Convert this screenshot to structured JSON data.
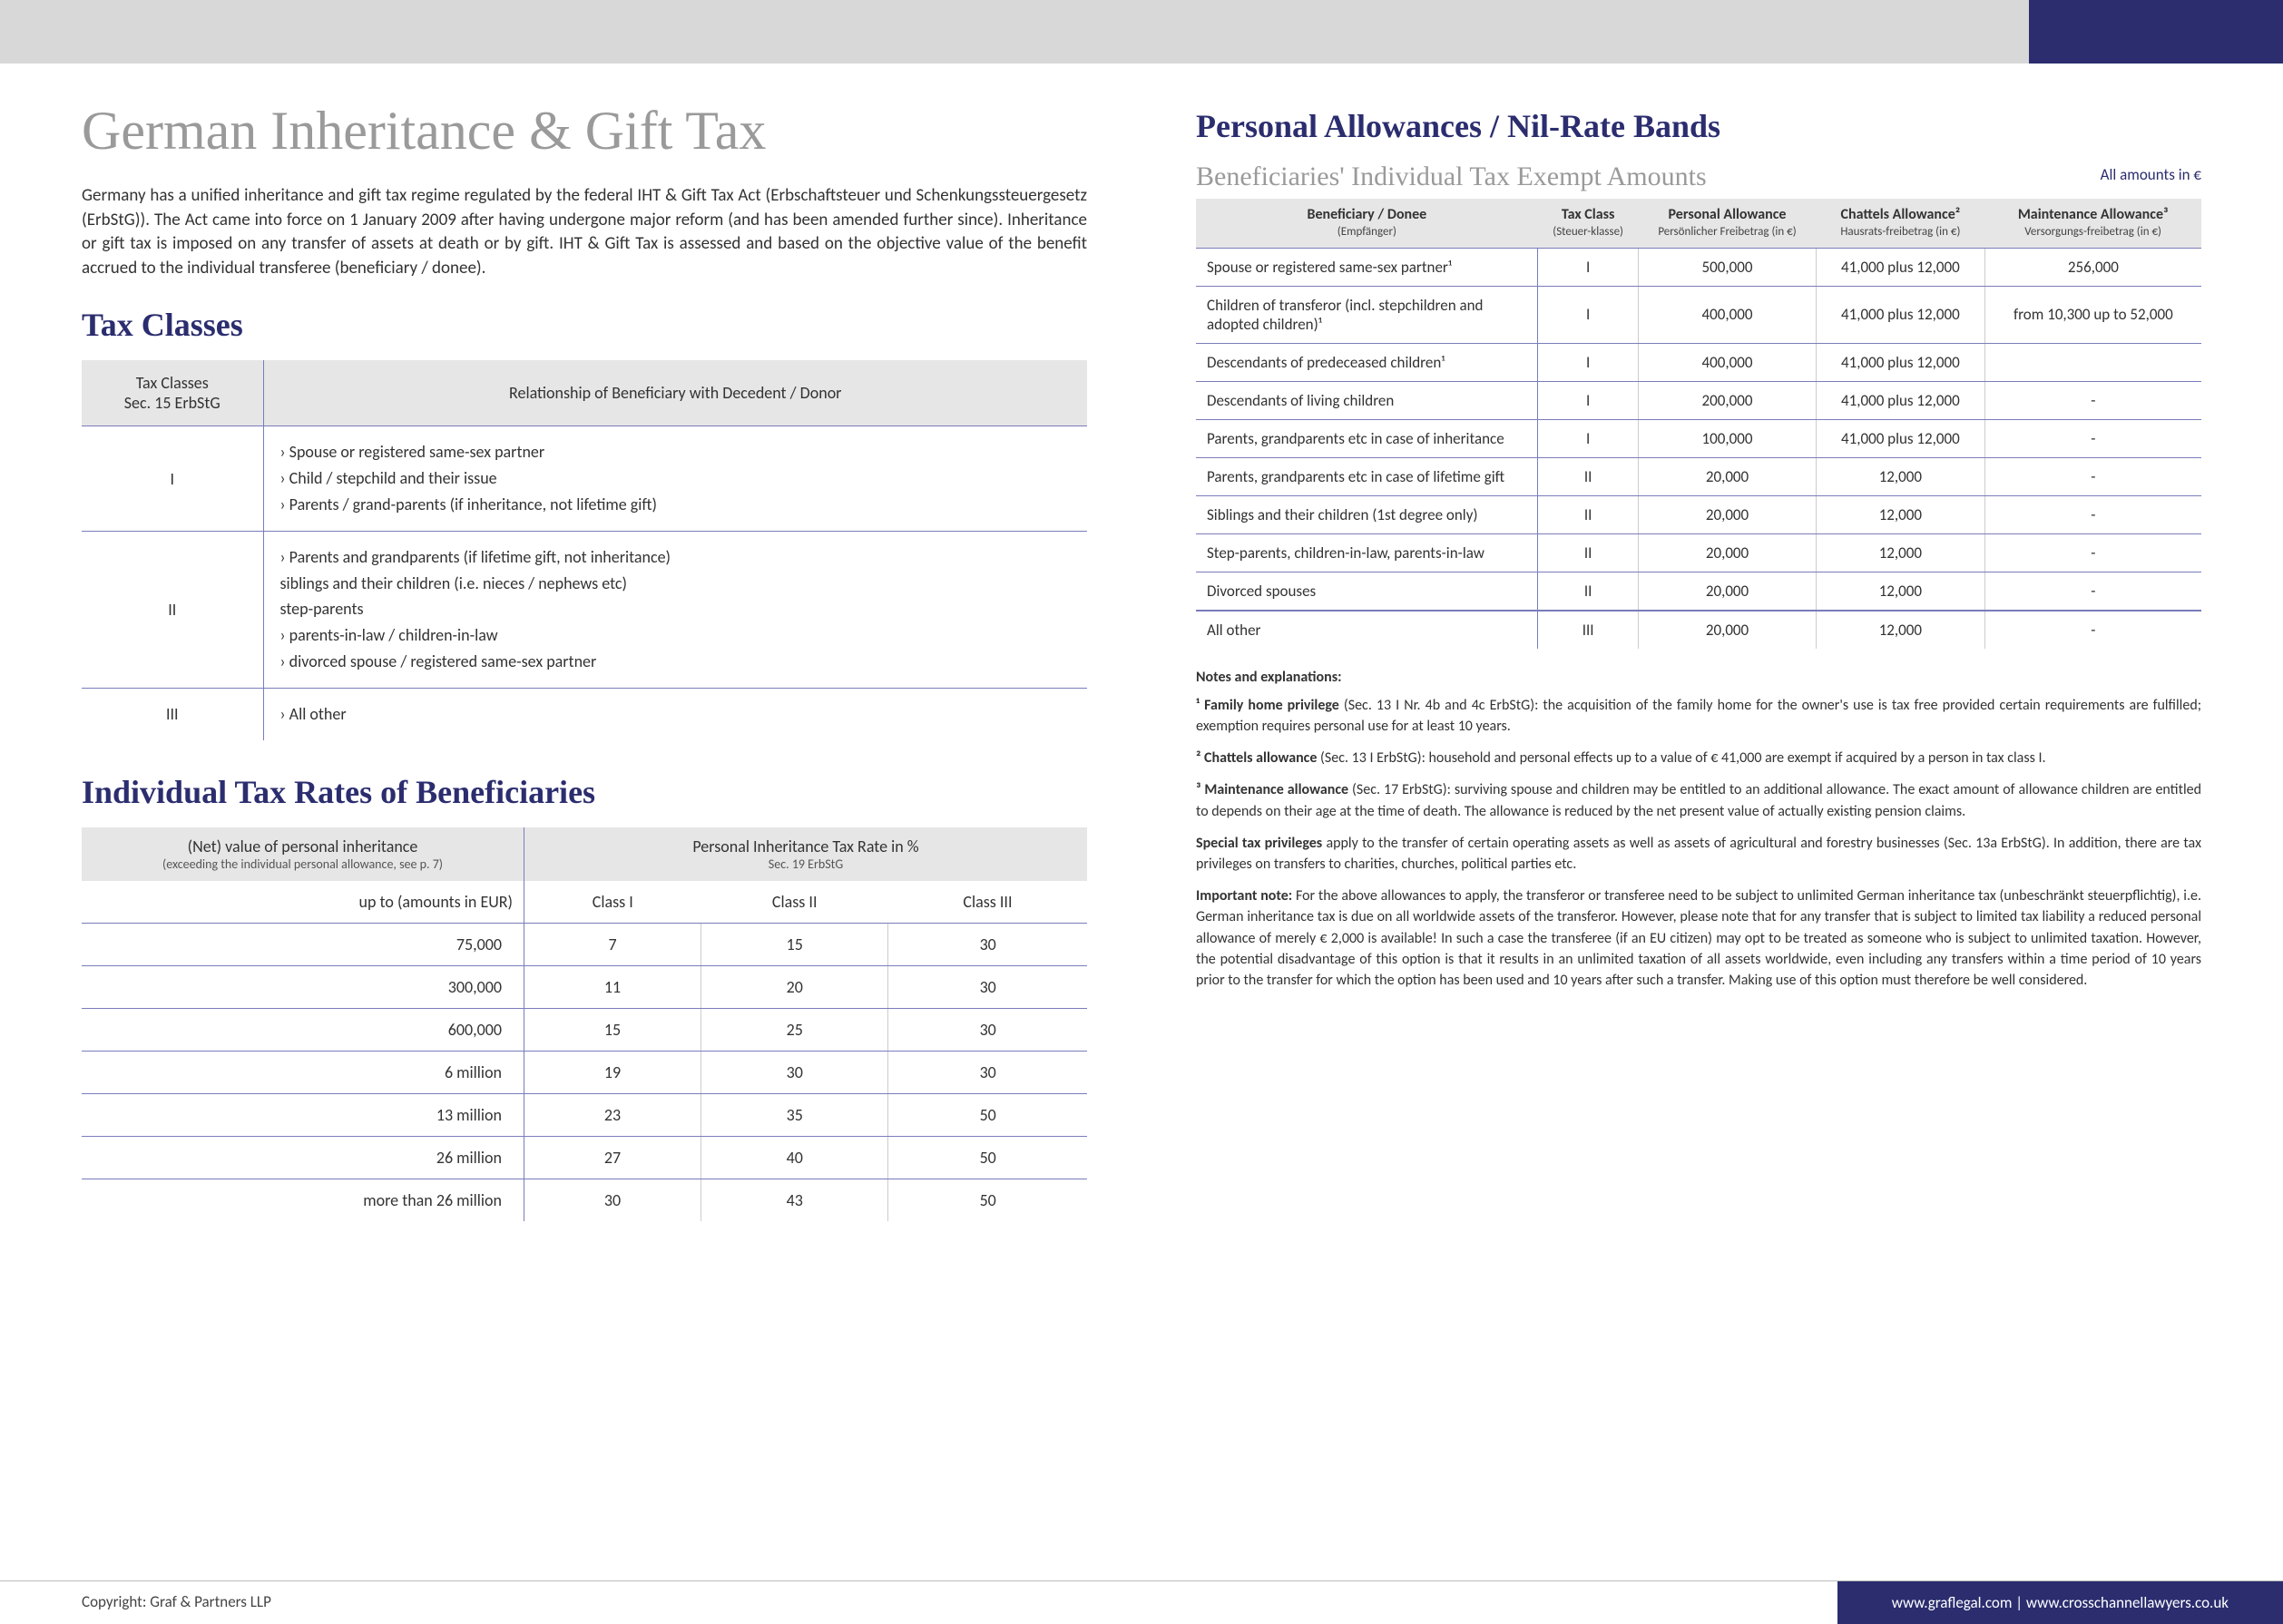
{
  "colors": {
    "accent": "#2b2d6f",
    "grey_title": "#9a9a9a",
    "header_bg": "#e6e6e6",
    "rule": "#7a7cbb",
    "top_bar": "#d8d8d8"
  },
  "main_title": "German Inheritance & Gift Tax",
  "intro": "Germany has a unified inheritance and gift tax regime regulated by the federal IHT & Gift Tax Act (Erbschaftsteuer und Schenkungssteuergesetz (ErbStG)). The Act came into force on 1 January 2009 after having undergone major reform (and has been amended further since). Inheritance or gift tax is imposed on any transfer of assets at death or by gift. IHT & Gift Tax is assessed and based on the objective value of the benefit accrued to the individual transferee (beneficiary / donee).",
  "tax_classes": {
    "title": "Tax Classes",
    "headers": [
      "Tax Classes\nSec. 15 ErbStG",
      "Relationship of Beneficiary with Decedent / Donor"
    ],
    "rows": [
      {
        "cls": "I",
        "rel": "› Spouse or registered same-sex partner\n› Child / stepchild and their issue\n› Parents / grand-parents (if inheritance, not lifetime gift)"
      },
      {
        "cls": "II",
        "rel": "› Parents and grandparents (if lifetime gift, not inheritance)\n  siblings and their children (i.e. nieces / nephews etc)\n  step-parents\n› parents-in-law / children-in-law\n› divorced spouse / registered same-sex partner"
      },
      {
        "cls": "III",
        "rel": "› All other"
      }
    ]
  },
  "rates": {
    "title": "Individual Tax Rates of Beneficiaries",
    "head_left": "(Net) value of personal inheritance",
    "head_left_sub": "(exceeding the individual personal allowance, see p. 7)",
    "head_right": "Personal Inheritance Tax Rate in %",
    "head_right_sub": "Sec. 19 ErbStG",
    "subheads": [
      "up to (amounts in EUR)",
      "Class I",
      "Class II",
      "Class III"
    ],
    "rows": [
      [
        "75,000",
        "7",
        "15",
        "30"
      ],
      [
        "300,000",
        "11",
        "20",
        "30"
      ],
      [
        "600,000",
        "15",
        "25",
        "30"
      ],
      [
        "6 million",
        "19",
        "30",
        "30"
      ],
      [
        "13 million",
        "23",
        "35",
        "50"
      ],
      [
        "26 million",
        "27",
        "40",
        "50"
      ],
      [
        "more than 26 million",
        "30",
        "43",
        "50"
      ]
    ]
  },
  "allowances": {
    "title": "Personal Allowances / Nil-Rate Bands",
    "subtitle": "Beneficiaries' Individual Tax Exempt Amounts",
    "euro_note": "All amounts in €",
    "headers": [
      {
        "t": "Beneficiary / Donee",
        "s": "(Empfänger)"
      },
      {
        "t": "Tax Class",
        "s": "(Steuer-klasse)"
      },
      {
        "t": "Personal Allowance",
        "s": "Persönlicher Freibetrag (in €)"
      },
      {
        "t": "Chattels Allowance²",
        "s": "Hausrats-freibetrag (in €)"
      },
      {
        "t": "Maintenance Allowance³",
        "s": "Versorgungs-freibetrag (in €)"
      }
    ],
    "rows": [
      [
        "Spouse or registered same-sex partner¹",
        "I",
        "500,000",
        "41,000 plus 12,000",
        "256,000"
      ],
      [
        "Children of transferor (incl. stepchildren and adopted children)¹",
        "I",
        "400,000",
        "41,000 plus 12,000",
        "from 10,300 up to 52,000"
      ],
      [
        "Descendants of predeceased children¹",
        "I",
        "400,000",
        "41,000 plus 12,000",
        ""
      ],
      [
        "Descendants of living children",
        "I",
        "200,000",
        "41,000 plus 12,000",
        "-"
      ],
      [
        "Parents, grandparents etc in case of inheritance",
        "I",
        "100,000",
        "41,000 plus 12,000",
        "-"
      ],
      [
        "Parents, grandparents etc in case of lifetime gift",
        "II",
        "20,000",
        "12,000",
        "-"
      ],
      [
        "Siblings and their children (1st degree only)",
        "II",
        "20,000",
        "12,000",
        "-"
      ],
      [
        "Step-parents, children-in-law, parents-in-law",
        "II",
        "20,000",
        "12,000",
        "-"
      ],
      [
        "Divorced spouses",
        "II",
        "20,000",
        "12,000",
        "-"
      ],
      [
        "All other",
        "III",
        "20,000",
        "12,000",
        "-"
      ]
    ]
  },
  "notes": {
    "heading": "Notes and explanations:",
    "items": [
      "¹ Family home privilege (Sec. 13 I Nr. 4b and 4c ErbStG): the acquisition of the family home for the owner's use is tax free provided certain requirements are fulfilled; exemption requires personal use for at least 10 years.",
      "² Chattels allowance (Sec. 13 I ErbStG): household and personal effects up to a value of € 41,000 are exempt if acquired by a person in tax class I.",
      "³ Maintenance allowance (Sec. 17 ErbStG): surviving spouse and children may be entitled to an additional allowance. The exact amount of allowance children are entitled to depends on their age at the time of death. The allowance is reduced by the net present value of actually existing pension claims."
    ],
    "extra": [
      "Special tax privileges apply to the transfer of certain operating assets as well as assets of agricultural and forestry businesses (Sec. 13a ErbStG). In addition, there are tax privileges on transfers to charities, churches, political parties etc.",
      "Important note: For the above allowances to apply, the transferor or transferee need to be subject to unlimited German inheritance tax (unbeschränkt steuerpflichtig), i.e. German inheritance tax is due on all worldwide assets of the transferor. However, please note that for any transfer that is subject to limited tax liability a reduced personal allowance of merely € 2,000 is available! In such a case the transferee (if an EU citizen) may opt to be treated as someone who is subject to unlimited taxation. However, the potential disadvantage of this option is that it results in an unlimited taxation of all assets worldwide, even including any transfers within a time period of 10 years prior to the transfer for which the option has been used and 10 years after such a transfer. Making use of this option must therefore be well considered."
    ]
  },
  "footer": {
    "left": "Copyright: Graf & Partners LLP",
    "right": "www.graflegal.com | www.crosschannellawyers.co.uk"
  }
}
